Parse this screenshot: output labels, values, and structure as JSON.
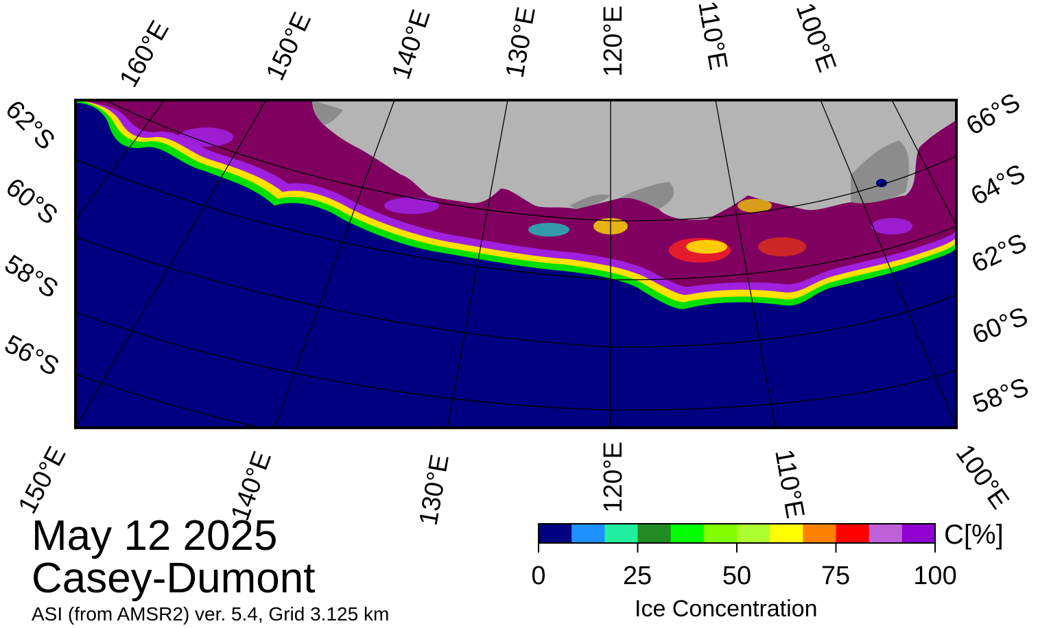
{
  "map": {
    "date": "May 12 2025",
    "region": "Casey-Dumont",
    "product": "ASI (from AMSR2) ver. 5.4,  Grid 3.125 km",
    "colors": {
      "ocean": "#000080",
      "land": "#b4b4b4",
      "ice_shelf": "#8c8c8c",
      "high_ice": "#800060",
      "frame": "#000000"
    },
    "top_lon_labels": [
      "160°E",
      "150°E",
      "140°E",
      "130°E",
      "120°E",
      "110°E",
      "100°E"
    ],
    "bottom_lon_labels": [
      "150°E",
      "140°E",
      "130°E",
      "120°E",
      "110°E",
      "100°E"
    ],
    "left_lat_labels": [
      "62°S",
      "60°S",
      "58°S",
      "56°S"
    ],
    "right_lat_labels": [
      "66°S",
      "64°S",
      "62°S",
      "60°S",
      "58°S"
    ]
  },
  "colorbar": {
    "title": "Ice Concentration",
    "unit": "C[%]",
    "ticks": [
      "0",
      "25",
      "50",
      "75",
      "100"
    ],
    "bins": [
      "#000080",
      "#1e90ff",
      "#20f0a0",
      "#228b22",
      "#00ff00",
      "#7fff00",
      "#adff2f",
      "#ffff00",
      "#ff8000",
      "#ff0000",
      "#c060d8",
      "#9000d0"
    ]
  }
}
